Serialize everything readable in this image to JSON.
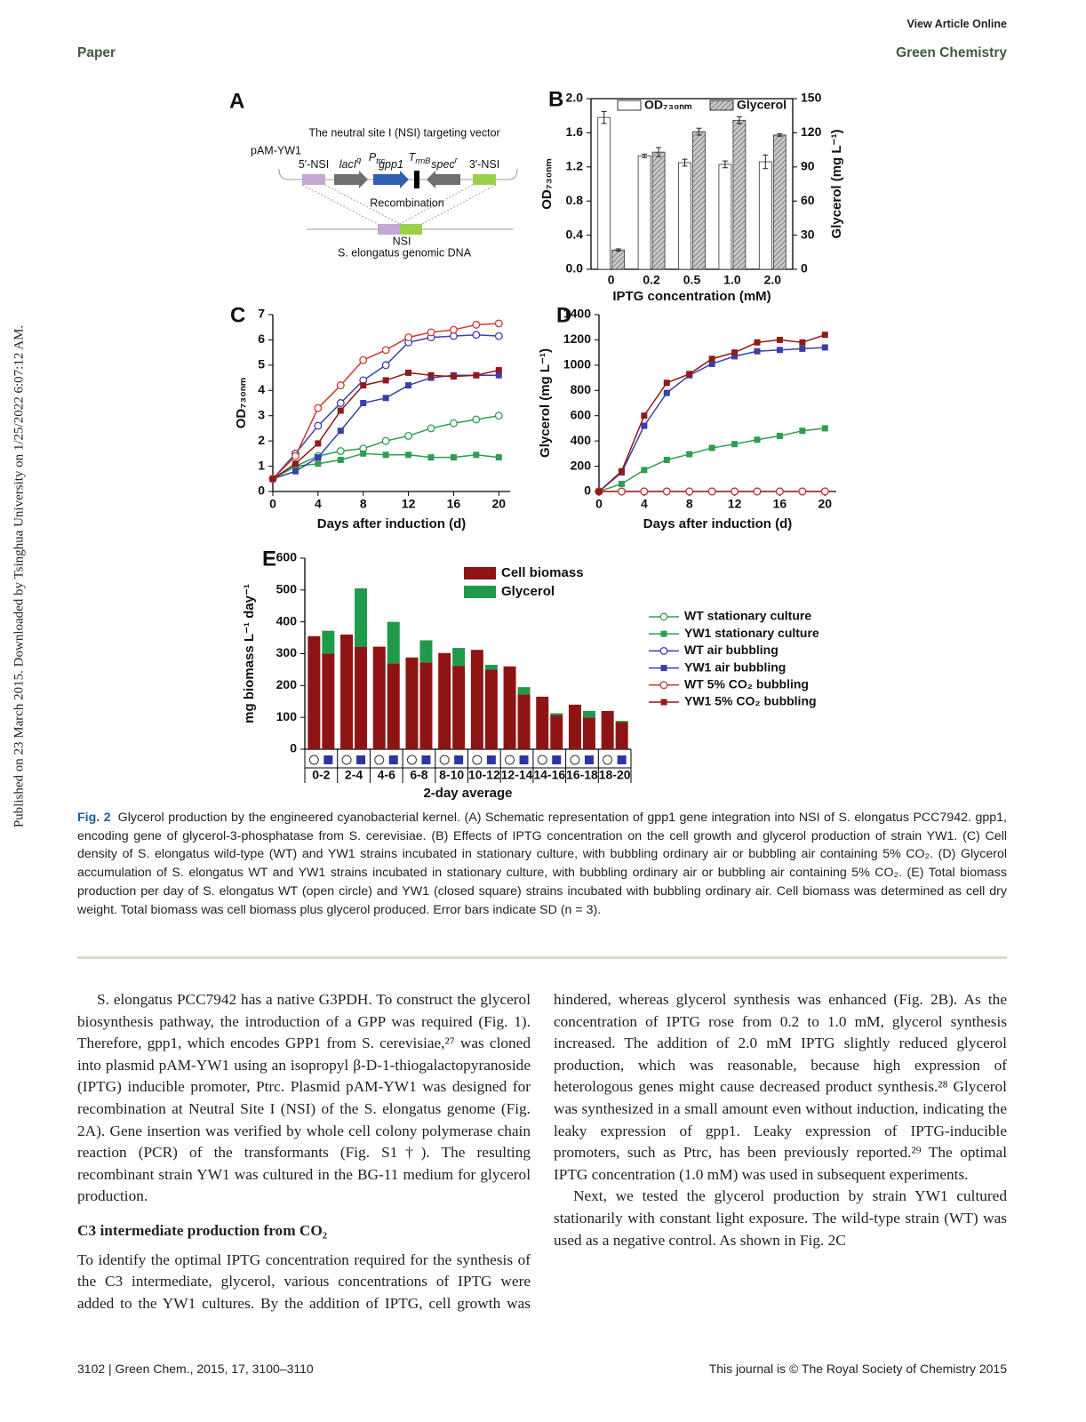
{
  "header": {
    "view_online": "View Article Online",
    "section": "Paper",
    "journal": "Green Chemistry"
  },
  "side_note": "Published on 23 March 2015. Downloaded by Tsinghua University on 1/25/2022 6:07:12 AM.",
  "panel_a": {
    "label": "A",
    "title": "The neutral site I (NSI) targeting vector",
    "plasmid": "pAM-YW1",
    "parts": [
      {
        "text": "5'-NSI"
      },
      {
        "text": "lacI",
        "sup": "q"
      },
      {
        "text": "P",
        "sub": "trc"
      },
      {
        "text": "gpp1"
      },
      {
        "text": "T",
        "sub": "rrnB"
      },
      {
        "text": "spec",
        "sup": "r"
      },
      {
        "text": "3'-NSI"
      }
    ],
    "recombination": "Recombination",
    "site": "NSI",
    "genome": "S. elongatus genomic DNA"
  },
  "charts": {
    "b": {
      "type": "bar",
      "label": "B",
      "x_label": "IPTG concentration (mM)",
      "y_label": "OD₇₃₀ₙₘ",
      "y2_label": "Glycerol (mg L⁻¹)",
      "categories": [
        "0",
        "0.2",
        "0.5",
        "1.0",
        "2.0"
      ],
      "series": [
        {
          "name": "OD₇₃₀ₙₘ",
          "color": "#ffffff",
          "values": [
            1.78,
            1.33,
            1.25,
            1.23,
            1.26
          ],
          "errors": [
            0.07,
            0.02,
            0.04,
            0.04,
            0.08
          ]
        },
        {
          "name": "Glycerol",
          "color": "#c8c8c8",
          "pattern": "hatch",
          "axis": "y2",
          "values": [
            17,
            103,
            121,
            131,
            118
          ],
          "errors": [
            1,
            4,
            3,
            3,
            1
          ]
        }
      ],
      "ylim": [
        0,
        2
      ],
      "yticks": [
        {
          "value": 0,
          "label": "0.0"
        },
        0.4,
        0.8,
        1.2,
        1.6,
        {
          "value": 2,
          "label": "2.0"
        }
      ],
      "y2lim": [
        0,
        150
      ],
      "y2ticks": [
        0,
        30,
        60,
        90,
        120,
        150
      ],
      "legend": "top"
    },
    "c": {
      "type": "line",
      "label": "C",
      "x_label": "Days after induction (d)",
      "y_label": "OD₇₃₀ₙₘ",
      "x": [
        0,
        2,
        4,
        6,
        8,
        10,
        12,
        14,
        16,
        18,
        20
      ],
      "xlim": [
        0,
        21
      ],
      "xticks": [
        0,
        4,
        8,
        12,
        16,
        20
      ],
      "ylim": [
        0,
        7
      ],
      "yticks": [
        0,
        1,
        2,
        3,
        4,
        5,
        6,
        7
      ],
      "series": [
        {
          "color": "#2e9e4f",
          "marker": "open-circle",
          "values": [
            0.5,
            1.0,
            1.4,
            1.6,
            1.7,
            2.0,
            2.2,
            2.5,
            2.7,
            2.85,
            3.0
          ]
        },
        {
          "color": "#2e9e4f",
          "marker": "square",
          "values": [
            0.5,
            1.0,
            1.1,
            1.25,
            1.5,
            1.45,
            1.45,
            1.35,
            1.35,
            1.45,
            1.35
          ]
        },
        {
          "color": "#3b3fa8",
          "marker": "open-circle",
          "values": [
            0.5,
            1.5,
            2.6,
            3.5,
            4.4,
            5.0,
            5.9,
            6.1,
            6.15,
            6.2,
            6.15
          ]
        },
        {
          "color": "#3b3fa8",
          "marker": "square",
          "values": [
            0.5,
            0.8,
            1.35,
            2.4,
            3.5,
            3.7,
            4.2,
            4.5,
            4.6,
            4.6,
            4.6
          ]
        },
        {
          "color": "#c93a32",
          "marker": "open-circle",
          "values": [
            0.5,
            1.4,
            3.3,
            4.2,
            5.2,
            5.6,
            6.1,
            6.3,
            6.4,
            6.6,
            6.65
          ]
        },
        {
          "color": "#8e1b1b",
          "marker": "square",
          "values": [
            0.5,
            1.1,
            1.9,
            3.2,
            4.2,
            4.4,
            4.7,
            4.6,
            4.55,
            4.6,
            4.8
          ]
        }
      ]
    },
    "d": {
      "type": "line",
      "label": "D",
      "x_label": "Days after induction (d)",
      "y_label": "Glycerol  (mg L⁻¹)",
      "x": [
        0,
        2,
        4,
        6,
        8,
        10,
        12,
        14,
        16,
        18,
        20
      ],
      "xlim": [
        0,
        21
      ],
      "xticks": [
        0,
        4,
        8,
        12,
        16,
        20
      ],
      "ylim": [
        0,
        1400
      ],
      "yticks": [
        0,
        200,
        400,
        600,
        800,
        1000,
        1200,
        1400
      ],
      "series": [
        {
          "name": "WT   stationary culture",
          "color": "#2e9e4f",
          "marker": "open-circle",
          "values": [
            0,
            0,
            0,
            0,
            0,
            0,
            0,
            0,
            0,
            0,
            0
          ]
        },
        {
          "name": "YW1 stationary culture",
          "color": "#2e9e4f",
          "marker": "square",
          "values": [
            0,
            60,
            170,
            250,
            295,
            345,
            375,
            410,
            440,
            480,
            500
          ]
        },
        {
          "name": "WT   air bubbling",
          "color": "#3b3fa8",
          "marker": "open-circle",
          "values": [
            0,
            0,
            0,
            0,
            0,
            0,
            0,
            0,
            0,
            0,
            0
          ]
        },
        {
          "name": "YW1 air bubbling",
          "color": "#3b3fa8",
          "marker": "square",
          "values": [
            0,
            150,
            520,
            780,
            920,
            1010,
            1070,
            1110,
            1120,
            1130,
            1140
          ]
        },
        {
          "name": "WT   5% CO₂ bubbling",
          "color": "#c93a32",
          "marker": "open-circle",
          "values": [
            0,
            0,
            0,
            0,
            0,
            0,
            0,
            0,
            0,
            0,
            0
          ]
        },
        {
          "name": "YW1 5% CO₂ bubbling",
          "color": "#8e1b1b",
          "marker": "square",
          "values": [
            0,
            160,
            600,
            860,
            930,
            1050,
            1100,
            1180,
            1200,
            1180,
            1240
          ]
        }
      ]
    },
    "e": {
      "type": "stacked-bar",
      "label": "E",
      "x_label": "2-day average",
      "y_label": "mg biomass L⁻¹ day⁻¹",
      "categories": [
        "0-2",
        "2-4",
        "4-6",
        "6-8",
        "8-10",
        "10-12",
        "12-14",
        "14-16",
        "16-18",
        "18-20"
      ],
      "group_markers": [
        "open-circle",
        "square"
      ],
      "ylim": [
        0,
        600
      ],
      "yticks": [
        0,
        100,
        200,
        300,
        400,
        500,
        600
      ],
      "series": [
        {
          "name": "Cell biomass",
          "color": "#8e1414",
          "values": [
            [
              355,
              300
            ],
            [
              360,
              322
            ],
            [
              322,
              270
            ],
            [
              288,
              272
            ],
            [
              302,
              262
            ],
            [
              312,
              250
            ],
            [
              260,
              172
            ],
            [
              165,
              108
            ],
            [
              140,
              100
            ],
            [
              120,
              85
            ]
          ]
        },
        {
          "name": "Glycerol",
          "color": "#1f9a4b",
          "values": [
            [
              null,
              72
            ],
            [
              null,
              183
            ],
            [
              null,
              130
            ],
            [
              null,
              70
            ],
            [
              null,
              56
            ],
            [
              null,
              15
            ],
            [
              null,
              23
            ],
            [
              null,
              5
            ],
            [
              null,
              20
            ],
            [
              null,
              4
            ]
          ]
        }
      ]
    }
  },
  "caption": {
    "label": "Fig. 2",
    "text": "Glycerol production by the engineered cyanobacterial kernel. (A) Schematic representation of gpp1 gene integration into NSI of S. elongatus PCC7942. gpp1, encoding gene of glycerol-3-phosphatase from S. cerevisiae. (B) Effects of IPTG concentration on the cell growth and glycerol production of strain YW1. (C) Cell density of S. elongatus wild-type (WT) and YW1 strains incubated in stationary culture, with bubbling ordinary air or bubbling air containing 5% CO₂. (D) Glycerol accumulation of S. elongatus WT and YW1 strains incubated in stationary culture, with bubbling ordinary air or bubbling air containing 5% CO₂. (E) Total biomass production per day of S. elongatus WT (open circle) and YW1 (closed square) strains incubated with bubbling ordinary air. Cell biomass was determined as cell dry weight. Total biomass was cell biomass plus glycerol produced. Error bars indicate SD (n = 3)."
  },
  "body": {
    "paragraphs": [
      "S. elongatus PCC7942 has a native G3PDH. To construct the glycerol biosynthesis pathway, the introduction of a GPP was required (Fig. 1). Therefore, gpp1, which encodes GPP1 from S. cerevisiae,²⁷ was cloned into plasmid pAM-YW1 using an isopropyl β-D-1-thiogalactopyranoside (IPTG) inducible promoter, Ptrc. Plasmid pAM-YW1 was designed for recombination at Neutral Site I (NSI) of the S. elongatus genome (Fig. 2A). Gene insertion was verified by whole cell colony polymerase chain reaction (PCR) of the transformants (Fig. S1†). The resulting recombinant strain YW1 was cultured in the BG-11 medium for glycerol production.",
      "To identify the optimal IPTG concentration required for the synthesis of the C3 intermediate, glycerol, various concentrations of IPTG were added to the YW1 cultures. By the addition of IPTG, cell growth was hindered, whereas glycerol synthesis was enhanced (Fig. 2B). As the concentration of IPTG rose from 0.2 to 1.0 mM, glycerol synthesis increased. The addition of 2.0 mM IPTG slightly reduced glycerol production, which was reasonable, because high expression of heterologous genes might cause decreased product synthesis.²⁸ Glycerol was synthesized in a small amount even without induction, indicating the leaky expression of gpp1. Leaky expression of IPTG-inducible promoters, such as Ptrc, has been previously reported.²⁹ The optimal IPTG concentration (1.0 mM) was used in subsequent experiments.",
      "Next, we tested the glycerol production by strain YW1 cultured stationarily with constant light exposure. The wild-type strain (WT) was used as a negative control. As shown in Fig. 2C"
    ],
    "heading": "C3 intermediate production from CO₂"
  },
  "footer": {
    "left": "3102 | Green Chem., 2015, 17, 3100–3110",
    "right": "This journal is © The Royal Society of Chemistry 2015"
  }
}
